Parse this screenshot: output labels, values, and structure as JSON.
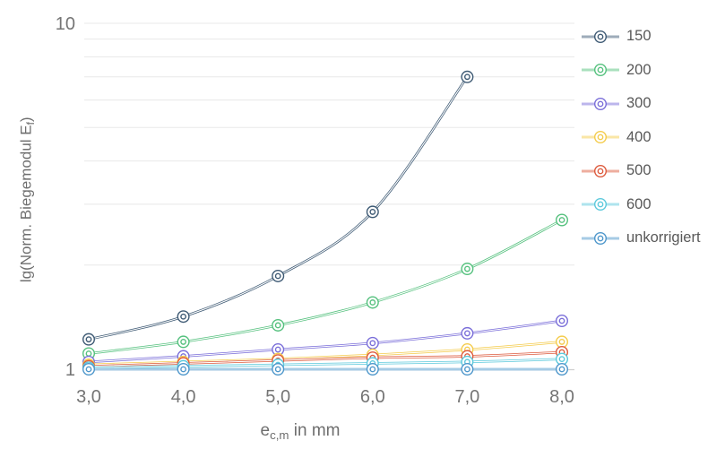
{
  "chart_data": {
    "type": "line",
    "title": "",
    "x": [
      3.0,
      4.0,
      5.0,
      6.0,
      7.0,
      8.0
    ],
    "x_tick_labels": [
      "3,0",
      "4,0",
      "5,0",
      "6,0",
      "7,0",
      "8,0"
    ],
    "xlabel": {
      "base": "e",
      "sub": "c,m",
      "rest": " in mm"
    },
    "ylabel": {
      "prefix": "lg(Norm. Biegemodul E",
      "sub": "f",
      "suffix": ")"
    },
    "y_scale": "log10",
    "ylim": [
      1,
      10
    ],
    "y_ticks": [
      {
        "value": 1,
        "label": "1"
      },
      {
        "value": 10,
        "label": "10"
      }
    ],
    "grid": "horizontal, log minor lines 2-9, on",
    "legend_position": "right",
    "marker_style": "double-circle",
    "line_style": "double-line, smoothed",
    "series": [
      {
        "name": "150",
        "color": "#3E5A74",
        "values": [
          1.22,
          1.42,
          1.86,
          2.85,
          7.0,
          null
        ]
      },
      {
        "name": "200",
        "color": "#55C17E",
        "values": [
          1.11,
          1.2,
          1.34,
          1.56,
          1.95,
          2.7
        ]
      },
      {
        "name": "300",
        "color": "#7A6ED9",
        "values": [
          1.05,
          1.09,
          1.14,
          1.19,
          1.27,
          1.38
        ]
      },
      {
        "name": "400",
        "color": "#F4CC4D",
        "values": [
          1.03,
          1.05,
          1.07,
          1.1,
          1.14,
          1.2
        ]
      },
      {
        "name": "500",
        "color": "#DD5B3E",
        "values": [
          1.02,
          1.04,
          1.06,
          1.08,
          1.09,
          1.12
        ]
      },
      {
        "name": "600",
        "color": "#5CC9DC",
        "values": [
          1.01,
          1.02,
          1.03,
          1.04,
          1.05,
          1.07
        ]
      },
      {
        "name": "unkorrigiert",
        "color": "#4E97CB",
        "values": [
          1.0,
          1.0,
          1.0,
          1.0,
          1.0,
          1.0
        ]
      }
    ],
    "colors": {
      "tick_label": "#757575",
      "axis_title": "#6e6e6e",
      "legend_text": "#595959",
      "gridline": "#E8E8E8",
      "axis_line": "#CFCFCF",
      "background": "#FFFFFF"
    }
  }
}
